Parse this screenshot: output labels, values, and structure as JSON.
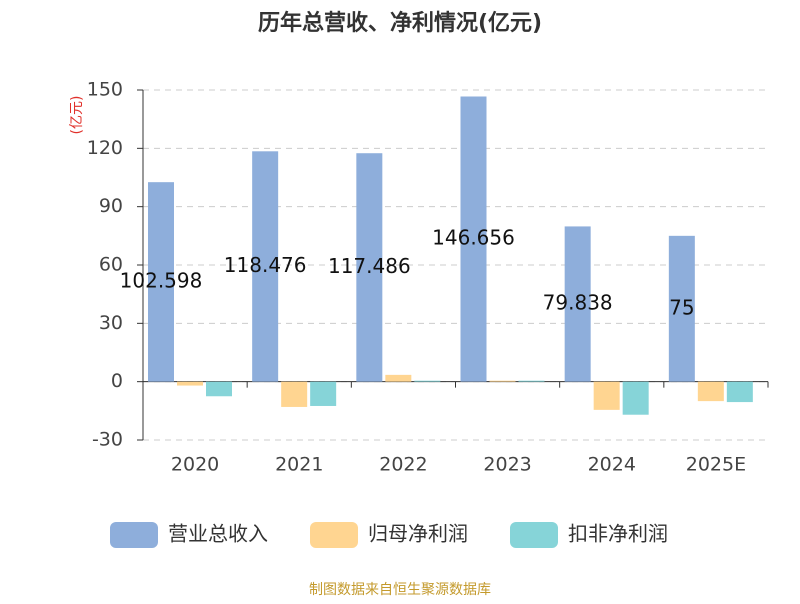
{
  "chart_data": {
    "type": "bar",
    "title": "历年总营收、净利情况(亿元)",
    "y_label": "(亿元)",
    "categories": [
      "2020",
      "2021",
      "2022",
      "2023",
      "2024",
      "2025E"
    ],
    "series": [
      {
        "name": "营业总收入",
        "color": "#8eaedb",
        "values": [
          102.598,
          118.476,
          117.486,
          146.656,
          79.838,
          75
        ],
        "show_labels": true
      },
      {
        "name": "归母净利润",
        "color": "#ffd591",
        "values": [
          -2,
          -13,
          3.5,
          0.5,
          -14.5,
          -10
        ]
      },
      {
        "name": "扣非净利润",
        "color": "#86d4d8",
        "values": [
          -7.5,
          -12.5,
          0.5,
          0.5,
          -17,
          -10.5
        ]
      }
    ],
    "ylim": [
      -30,
      150
    ],
    "yticks": [
      -30,
      0,
      30,
      60,
      90,
      120,
      150
    ],
    "grid": true,
    "source": "制图数据来自恒生聚源数据库"
  }
}
